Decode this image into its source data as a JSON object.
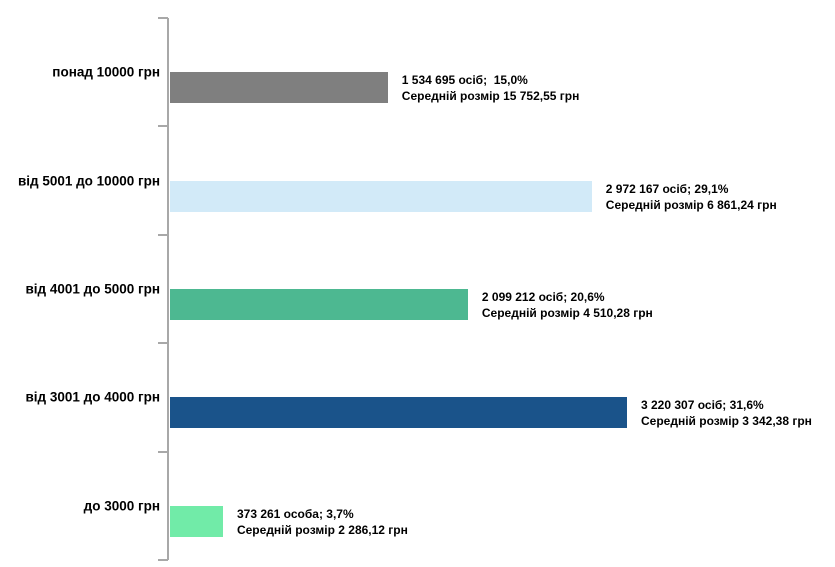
{
  "page": {
    "background_color": "#ffffff",
    "axis_color": "#a8a8a8"
  },
  "chart_data": {
    "type": "bar",
    "orientation": "horizontal",
    "title": "",
    "xlabel": "",
    "ylabel": "",
    "grid": false,
    "legend": false,
    "categories": [
      "понад 10000 грн",
      "від 5001 до 10000 грн",
      "від 4001 до 5000 грн",
      "від 3001 до 4000 грн",
      "до 3000 грн"
    ],
    "items": [
      {
        "label": "понад 10000 грн",
        "people": 1534695,
        "percent": 15.0,
        "avg_amount": 15752.55,
        "count_label": "1 534 695 осіб;  15,0%",
        "avg_label": "Середній розмір 15 752,55 грн",
        "color": "#7f7f7f"
      },
      {
        "label": "від 5001 до 10000 грн",
        "people": 2972167,
        "percent": 29.1,
        "avg_amount": 6861.24,
        "count_label": "2 972 167 осіб; 29,1%",
        "avg_label": "Середній розмір 6 861,24 грн",
        "color": "#d2eaf8"
      },
      {
        "label": "від 4001 до 5000 грн",
        "people": 2099212,
        "percent": 20.6,
        "avg_amount": 4510.28,
        "count_label": "2 099 212 осіб; 20,6%",
        "avg_label": "Середній розмір 4 510,28 грн",
        "color": "#4db891"
      },
      {
        "label": "від 3001 до 4000 грн",
        "people": 3220307,
        "percent": 31.6,
        "avg_amount": 3342.38,
        "count_label": "3 220 307 осіб; 31,6%",
        "avg_label": "Середній розмір 3 342,38 грн",
        "color": "#1a538a"
      },
      {
        "label": "до 3000 грн",
        "people": 373261,
        "percent": 3.7,
        "avg_amount": 2286.12,
        "count_label": "373 261 особа; 3,7%",
        "avg_label": "Середній розмір 2 286,12 грн",
        "color": "#71eba8"
      }
    ]
  }
}
